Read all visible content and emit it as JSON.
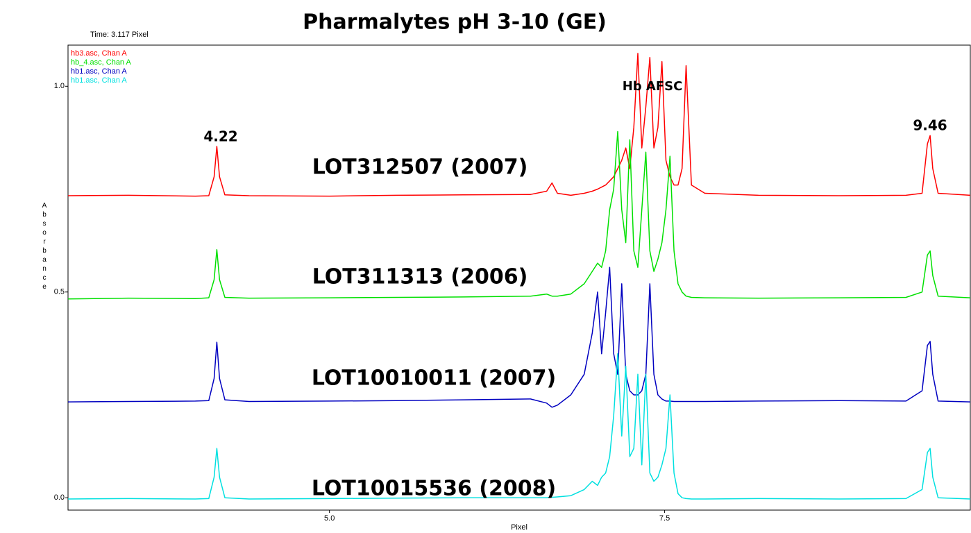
{
  "chart_data": {
    "type": "line",
    "title": "Pharmalytes pH 3-10 (GE)",
    "subtitle": "Time:  3.117 Pixel",
    "x_label": "Pixel",
    "y_label": "Absorbance",
    "annotations": [
      "Hb AFSC",
      "4.22",
      "9.46",
      "LOT312507 (2007)",
      "LOT311313 (2006)",
      "LOT10010011 (2007)",
      "LOT10015536 (2008)"
    ],
    "xlim": [
      3.05,
      9.78
    ],
    "ylim": [
      -0.03,
      1.1
    ],
    "xticks": [
      {
        "value": 5,
        "label": "5.0"
      },
      7.5
    ],
    "yticks": [
      {
        "value": 0,
        "label": "0.0"
      },
      0.5,
      {
        "value": 1,
        "label": "1.0"
      }
    ],
    "legend": "top-left",
    "x": [
      3.05,
      3.5,
      4.0,
      4.1,
      4.14,
      4.16,
      4.18,
      4.22,
      4.4,
      5.0,
      5.5,
      6.0,
      6.5,
      6.62,
      6.66,
      6.7,
      6.8,
      6.9,
      6.96,
      7.0,
      7.03,
      7.06,
      7.09,
      7.12,
      7.15,
      7.18,
      7.21,
      7.24,
      7.27,
      7.3,
      7.33,
      7.36,
      7.39,
      7.42,
      7.45,
      7.48,
      7.51,
      7.54,
      7.57,
      7.6,
      7.63,
      7.66,
      7.7,
      7.8,
      8.2,
      8.8,
      9.3,
      9.42,
      9.46,
      9.48,
      9.5,
      9.54,
      9.78
    ],
    "series": [
      {
        "name": "hb3.asc, Chan A",
        "color": "#ff0000",
        "values": [
          0.734,
          0.735,
          0.733,
          0.734,
          0.78,
          0.854,
          0.78,
          0.736,
          0.734,
          0.733,
          0.735,
          0.736,
          0.737,
          0.745,
          0.765,
          0.74,
          0.735,
          0.74,
          0.745,
          0.75,
          0.755,
          0.76,
          0.77,
          0.78,
          0.8,
          0.82,
          0.85,
          0.8,
          0.9,
          1.08,
          0.85,
          0.95,
          1.07,
          0.85,
          0.9,
          1.06,
          0.82,
          0.78,
          0.76,
          0.76,
          0.8,
          1.05,
          0.76,
          0.74,
          0.735,
          0.734,
          0.735,
          0.74,
          0.86,
          0.88,
          0.8,
          0.74,
          0.735
        ]
      },
      {
        "name": "hb_4.asc, Chan A",
        "color": "#00e000",
        "values": [
          0.483,
          0.485,
          0.484,
          0.486,
          0.53,
          0.603,
          0.53,
          0.487,
          0.485,
          0.486,
          0.487,
          0.488,
          0.49,
          0.495,
          0.49,
          0.49,
          0.495,
          0.52,
          0.55,
          0.57,
          0.56,
          0.6,
          0.7,
          0.75,
          0.89,
          0.7,
          0.62,
          0.87,
          0.6,
          0.56,
          0.7,
          0.84,
          0.6,
          0.55,
          0.58,
          0.62,
          0.7,
          0.83,
          0.6,
          0.52,
          0.5,
          0.49,
          0.487,
          0.486,
          0.485,
          0.486,
          0.487,
          0.5,
          0.59,
          0.6,
          0.54,
          0.49,
          0.486
        ]
      },
      {
        "name": "hb1.asc, Chan A",
        "color": "#0000c0",
        "values": [
          0.233,
          0.234,
          0.235,
          0.236,
          0.29,
          0.378,
          0.29,
          0.238,
          0.234,
          0.235,
          0.236,
          0.238,
          0.24,
          0.23,
          0.22,
          0.225,
          0.25,
          0.3,
          0.4,
          0.5,
          0.35,
          0.45,
          0.56,
          0.35,
          0.3,
          0.52,
          0.3,
          0.26,
          0.25,
          0.25,
          0.26,
          0.3,
          0.52,
          0.3,
          0.25,
          0.24,
          0.235,
          0.235,
          0.234,
          0.234,
          0.234,
          0.234,
          0.234,
          0.234,
          0.235,
          0.236,
          0.235,
          0.26,
          0.37,
          0.38,
          0.3,
          0.235,
          0.233
        ]
      },
      {
        "name": "hb1.asc, Chan A",
        "color": "#00e0e0",
        "values": [
          -0.003,
          -0.002,
          -0.003,
          -0.002,
          0.05,
          0.12,
          0.05,
          0.0,
          -0.003,
          -0.002,
          -0.001,
          0.0,
          0.0,
          0.0,
          0.001,
          0.002,
          0.005,
          0.02,
          0.04,
          0.03,
          0.05,
          0.06,
          0.1,
          0.2,
          0.35,
          0.15,
          0.32,
          0.1,
          0.12,
          0.3,
          0.08,
          0.3,
          0.06,
          0.04,
          0.05,
          0.08,
          0.12,
          0.25,
          0.06,
          0.01,
          0.0,
          -0.002,
          -0.003,
          -0.003,
          -0.002,
          -0.003,
          -0.002,
          0.02,
          0.11,
          0.12,
          0.05,
          0.0,
          -0.003
        ]
      }
    ]
  }
}
